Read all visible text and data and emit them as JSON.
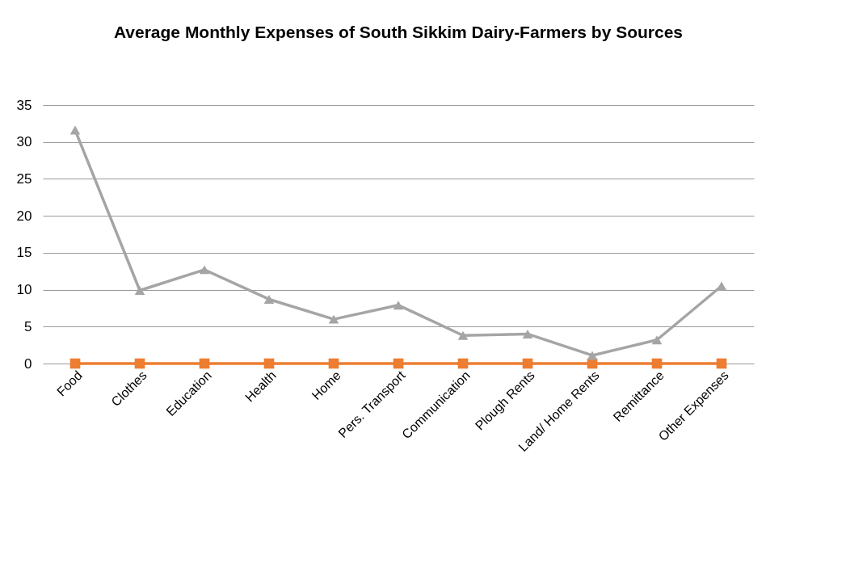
{
  "chart_data": {
    "type": "line",
    "title": "Average Monthly Expenses of South Sikkim Dairy-Farmers by Sources",
    "categories": [
      "Food",
      "Clothes",
      "Education",
      "Health",
      "Home",
      "Pers. Transport",
      "Communication",
      "Plough Rents",
      "Land/ Home Rents",
      "Remittance",
      "Other Expenses"
    ],
    "series": [
      {
        "color": "#ed7d31",
        "marker": "square",
        "values": [
          0,
          0,
          0,
          0,
          0,
          0,
          0,
          0,
          0,
          0,
          0
        ]
      },
      {
        "color": "#a5a5a5",
        "marker": "triangle",
        "values": [
          31.6,
          9.9,
          12.7,
          8.7,
          6.0,
          7.9,
          3.8,
          4.0,
          1.1,
          3.2,
          10.5
        ]
      }
    ],
    "ylim": [
      0,
      35
    ],
    "yticks": [
      0,
      5,
      10,
      15,
      20,
      25,
      30,
      35
    ],
    "grid": "y",
    "line_style": "solid"
  }
}
